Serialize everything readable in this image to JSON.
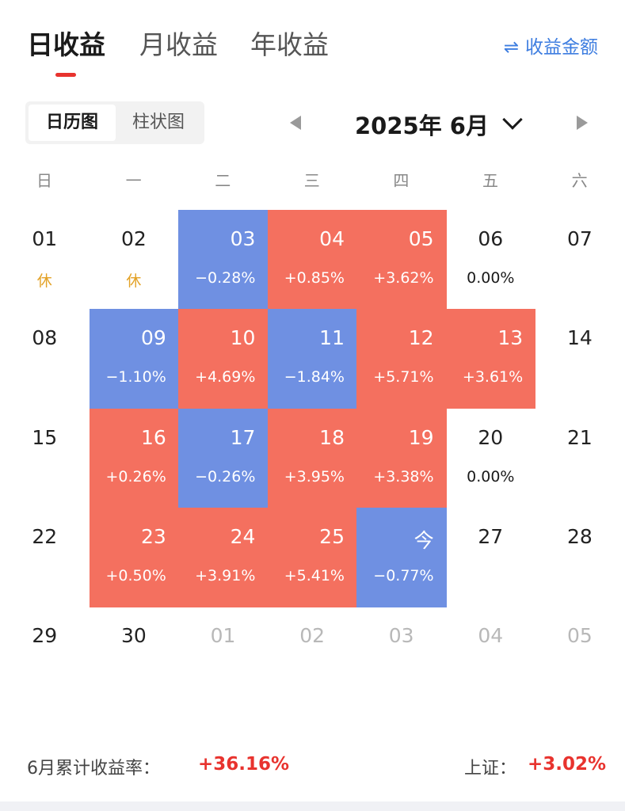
{
  "tabs": [
    {
      "label": "日收益",
      "active": true
    },
    {
      "label": "月收益",
      "active": false
    },
    {
      "label": "年收益",
      "active": false
    }
  ],
  "switch_link": {
    "icon": "swap-icon",
    "icon_glyph": "⇌",
    "label": "收益金额",
    "color": "#3d7de0"
  },
  "view_toggle": [
    {
      "label": "日历图",
      "active": true
    },
    {
      "label": "柱状图",
      "active": false
    }
  ],
  "month_nav": {
    "title": "2025年 6月",
    "prev_icon": "triangle-left-icon",
    "next_icon": "triangle-right-icon",
    "dropdown_icon": "chevron-down-icon"
  },
  "weekdays": [
    "日",
    "一",
    "二",
    "三",
    "四",
    "五",
    "六"
  ],
  "colors": {
    "up": "#f4705f",
    "down": "#6f90e2",
    "positive_text": "#e8332e",
    "holiday_text": "#e3a227"
  },
  "calendar": [
    [
      {
        "day": "01",
        "sub": "休",
        "type": "holiday"
      },
      {
        "day": "02",
        "sub": "休",
        "type": "holiday"
      },
      {
        "day": "03",
        "sub": "−0.28%",
        "type": "down"
      },
      {
        "day": "04",
        "sub": "+0.85%",
        "type": "up"
      },
      {
        "day": "05",
        "sub": "+3.62%",
        "type": "up"
      },
      {
        "day": "06",
        "sub": "0.00%",
        "type": "flat"
      },
      {
        "day": "07",
        "sub": "",
        "type": "plain"
      }
    ],
    [
      {
        "day": "08",
        "sub": "",
        "type": "plain"
      },
      {
        "day": "09",
        "sub": "−1.10%",
        "type": "down"
      },
      {
        "day": "10",
        "sub": "+4.69%",
        "type": "up"
      },
      {
        "day": "11",
        "sub": "−1.84%",
        "type": "down"
      },
      {
        "day": "12",
        "sub": "+5.71%",
        "type": "up"
      },
      {
        "day": "13",
        "sub": "+3.61%",
        "type": "up"
      },
      {
        "day": "14",
        "sub": "",
        "type": "plain"
      }
    ],
    [
      {
        "day": "15",
        "sub": "",
        "type": "plain"
      },
      {
        "day": "16",
        "sub": "+0.26%",
        "type": "up"
      },
      {
        "day": "17",
        "sub": "−0.26%",
        "type": "down"
      },
      {
        "day": "18",
        "sub": "+3.95%",
        "type": "up"
      },
      {
        "day": "19",
        "sub": "+3.38%",
        "type": "up"
      },
      {
        "day": "20",
        "sub": "0.00%",
        "type": "flat"
      },
      {
        "day": "21",
        "sub": "",
        "type": "plain"
      }
    ],
    [
      {
        "day": "22",
        "sub": "",
        "type": "plain"
      },
      {
        "day": "23",
        "sub": "+0.50%",
        "type": "up"
      },
      {
        "day": "24",
        "sub": "+3.91%",
        "type": "up"
      },
      {
        "day": "25",
        "sub": "+5.41%",
        "type": "up"
      },
      {
        "day": "今",
        "sub": "−0.77%",
        "type": "down"
      },
      {
        "day": "27",
        "sub": "",
        "type": "plain"
      },
      {
        "day": "28",
        "sub": "",
        "type": "plain"
      }
    ],
    [
      {
        "day": "29",
        "sub": "",
        "type": "plain"
      },
      {
        "day": "30",
        "sub": "",
        "type": "plain"
      },
      {
        "day": "01",
        "sub": "",
        "type": "other"
      },
      {
        "day": "02",
        "sub": "",
        "type": "other"
      },
      {
        "day": "03",
        "sub": "",
        "type": "other"
      },
      {
        "day": "04",
        "sub": "",
        "type": "other"
      },
      {
        "day": "05",
        "sub": "",
        "type": "other"
      }
    ]
  ],
  "footer": {
    "cumulative_label": "6月累计收益率：",
    "cumulative_value": "+36.16%",
    "index_label": "上证：",
    "index_value": "+3.02%"
  }
}
